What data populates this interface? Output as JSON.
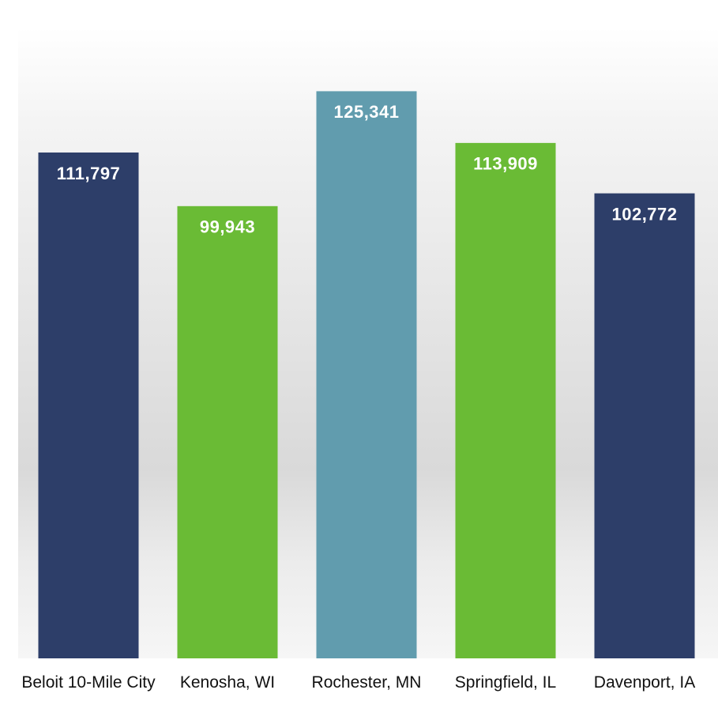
{
  "chart_data": {
    "type": "bar",
    "categories": [
      "Beloit 10-Mile City",
      "Kenosha, WI",
      "Rochester, MN",
      "Springfield, IL",
      "Davenport, IA"
    ],
    "values": [
      111797,
      99943,
      125341,
      113909,
      102772
    ],
    "value_labels": [
      "111,797",
      "99,943",
      "125,341",
      "113,909",
      "102,772"
    ],
    "colors": [
      "#2d3e69",
      "#6abb35",
      "#619cae",
      "#6abb35",
      "#2d3e69"
    ],
    "ylim": [
      0,
      140000
    ]
  }
}
